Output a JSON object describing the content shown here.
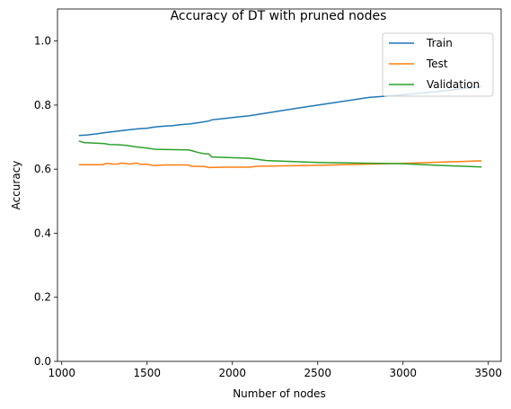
{
  "chart_data": {
    "type": "line",
    "title": "Accuracy of DT with pruned nodes",
    "xlabel": "Number of nodes",
    "ylabel": "Accuracy",
    "xlim": [
      975,
      3575
    ],
    "ylim": [
      0.0,
      1.1
    ],
    "xticks": [
      1000,
      1500,
      2000,
      2500,
      3000,
      3500
    ],
    "yticks": [
      0.0,
      0.2,
      0.4,
      0.6,
      0.8,
      1.0
    ],
    "xtick_labels": [
      "1000",
      "1500",
      "2000",
      "2500",
      "3000",
      "3500"
    ],
    "ytick_labels": [
      "0.0",
      "0.2",
      "0.4",
      "0.6",
      "0.8",
      "1.0"
    ],
    "grid": false,
    "legend_position": "top-right",
    "series": [
      {
        "name": "Train",
        "color": "#1f77b4",
        "x": [
          1100,
          1150,
          1200,
          1250,
          1300,
          1350,
          1400,
          1450,
          1500,
          1550,
          1600,
          1650,
          1700,
          1750,
          1800,
          1860,
          1880,
          1950,
          2000,
          2100,
          2200,
          2400,
          2600,
          2800,
          3000,
          3200,
          3460
        ],
        "y": [
          0.705,
          0.707,
          0.71,
          0.714,
          0.717,
          0.72,
          0.723,
          0.726,
          0.728,
          0.732,
          0.734,
          0.736,
          0.739,
          0.741,
          0.745,
          0.75,
          0.754,
          0.758,
          0.761,
          0.767,
          0.775,
          0.792,
          0.808,
          0.824,
          0.832,
          0.842,
          0.858
        ]
      },
      {
        "name": "Test",
        "color": "#ff7f0e",
        "x": [
          1100,
          1200,
          1240,
          1260,
          1300,
          1330,
          1350,
          1400,
          1440,
          1460,
          1500,
          1540,
          1600,
          1700,
          1740,
          1760,
          1800,
          1840,
          1860,
          1950,
          2100,
          2140,
          2500,
          3000,
          3460
        ],
        "y": [
          0.614,
          0.614,
          0.614,
          0.618,
          0.616,
          0.616,
          0.619,
          0.616,
          0.619,
          0.615,
          0.615,
          0.611,
          0.613,
          0.613,
          0.613,
          0.609,
          0.609,
          0.608,
          0.605,
          0.606,
          0.606,
          0.609,
          0.612,
          0.618,
          0.626
        ]
      },
      {
        "name": "Validation",
        "color": "#2ca02c",
        "x": [
          1100,
          1130,
          1200,
          1250,
          1280,
          1340,
          1380,
          1430,
          1500,
          1550,
          1740,
          1760,
          1800,
          1840,
          1860,
          1880,
          2100,
          2200,
          2500,
          3000,
          3200,
          3460
        ],
        "y": [
          0.688,
          0.683,
          0.681,
          0.68,
          0.677,
          0.676,
          0.674,
          0.67,
          0.666,
          0.662,
          0.66,
          0.658,
          0.652,
          0.648,
          0.648,
          0.638,
          0.634,
          0.627,
          0.621,
          0.617,
          0.612,
          0.607
        ]
      }
    ]
  }
}
